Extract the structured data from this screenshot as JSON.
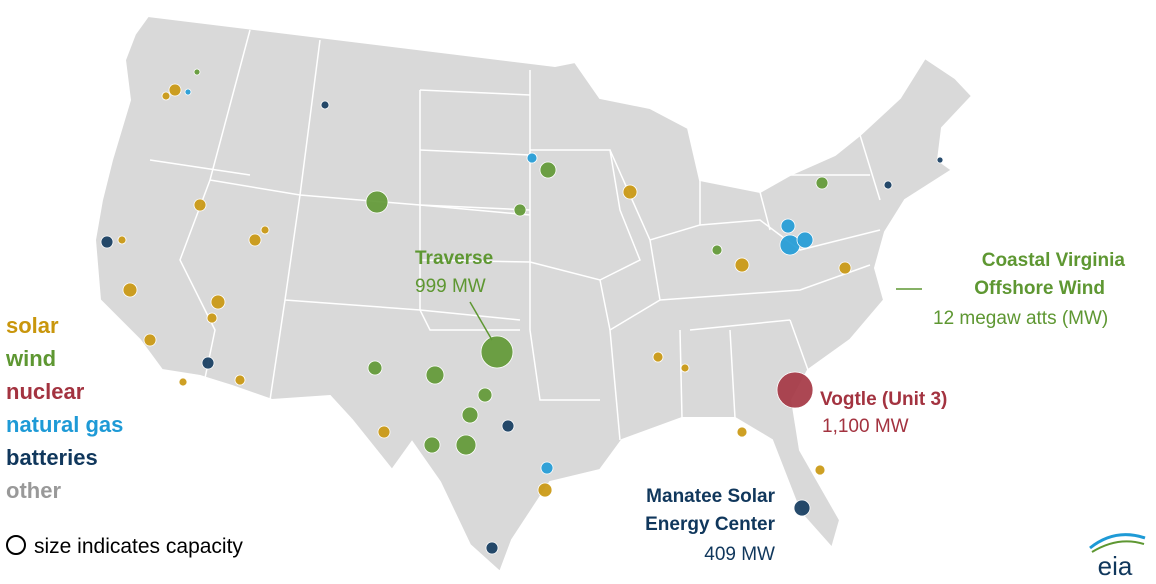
{
  "legend": {
    "items": [
      {
        "label": "solar",
        "color": "#c9960c"
      },
      {
        "label": "wind",
        "color": "#5e9732"
      },
      {
        "label": "nuclear",
        "color": "#a33340"
      },
      {
        "label": "natural gas",
        "color": "#1e9ad6"
      },
      {
        "label": "batteries",
        "color": "#10375c"
      },
      {
        "label": "other",
        "color": "#999999"
      }
    ],
    "size_note": "size indicates capacity"
  },
  "annotations": [
    {
      "name": "Traverse",
      "capacity": "999 MW",
      "color": "#5e9732"
    },
    {
      "name_lines": [
        "Coastal Virginia",
        "Offshore Wind"
      ],
      "capacity": "12 megaw atts (MW)",
      "color": "#5e9732"
    },
    {
      "name": "Vogtle (Unit 3)",
      "capacity": "1,100 MW",
      "color": "#a33340"
    },
    {
      "name_lines": [
        "Manatee Solar",
        "Energy Center"
      ],
      "capacity": "409 MW",
      "color": "#10375c"
    }
  ],
  "logo": "eia"
}
